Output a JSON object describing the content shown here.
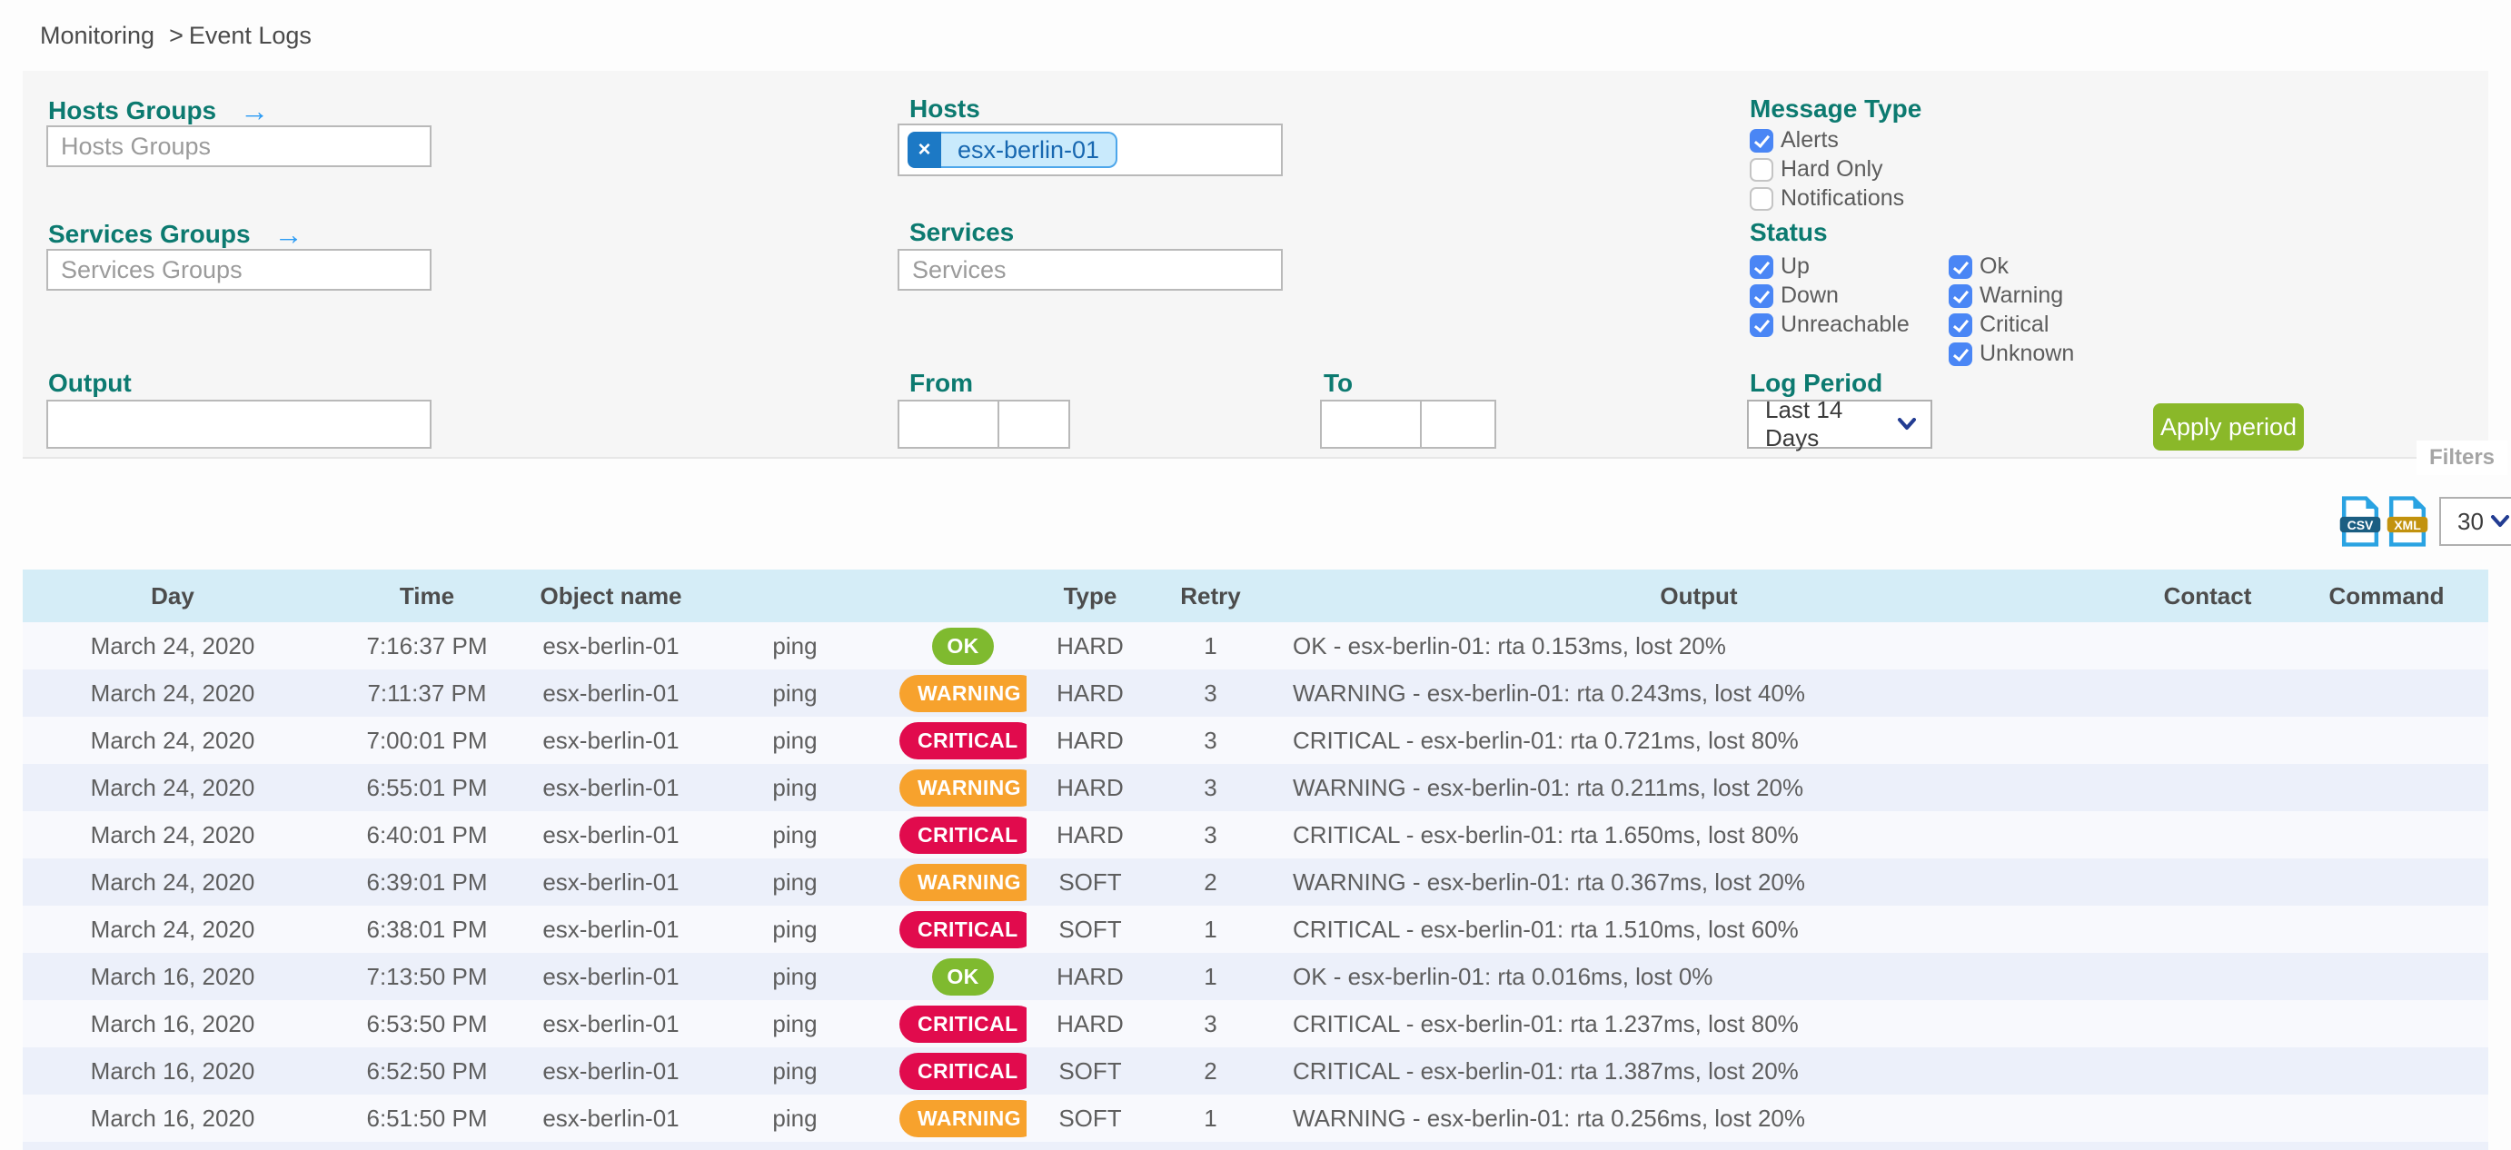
{
  "breadcrumb": {
    "section": "Monitoring",
    "separator": ">",
    "page": "Event Logs"
  },
  "filters": {
    "hosts_groups": {
      "label": "Hosts Groups",
      "placeholder": "Hosts Groups",
      "arrow_icon": "→"
    },
    "services_groups": {
      "label": "Services Groups",
      "placeholder": "Services Groups",
      "arrow_icon": "→"
    },
    "hosts": {
      "label": "Hosts",
      "selected": [
        {
          "label": "esx-berlin-01",
          "remove_icon": "×"
        }
      ]
    },
    "services": {
      "label": "Services",
      "placeholder": "Services"
    },
    "output": {
      "label": "Output",
      "value": ""
    },
    "from": {
      "label": "From",
      "date_value": "",
      "time_value": ""
    },
    "to": {
      "label": "To",
      "date_value": "",
      "time_value": ""
    },
    "message_type": {
      "label": "Message Type",
      "options": [
        {
          "label": "Alerts",
          "checked": true
        },
        {
          "label": "Hard Only",
          "checked": false
        },
        {
          "label": "Notifications",
          "checked": false
        }
      ]
    },
    "status": {
      "label": "Status",
      "host_statuses": [
        {
          "label": "Up",
          "checked": true
        },
        {
          "label": "Down",
          "checked": true
        },
        {
          "label": "Unreachable",
          "checked": true
        }
      ],
      "service_statuses": [
        {
          "label": "Ok",
          "checked": true
        },
        {
          "label": "Warning",
          "checked": true
        },
        {
          "label": "Critical",
          "checked": true
        },
        {
          "label": "Unknown",
          "checked": true
        }
      ]
    },
    "log_period": {
      "label": "Log Period",
      "selected": "Last 14 Days"
    },
    "apply_button_label": "Apply period",
    "filters_tab_label": "Filters"
  },
  "toolbar": {
    "csv_icon_label": "CSV",
    "xml_icon_label": "XML",
    "rows_per_page": "30"
  },
  "table": {
    "headers": {
      "day": "Day",
      "time": "Time",
      "object_name": "Object name",
      "service": "",
      "status": "",
      "type": "Type",
      "retry": "Retry",
      "output": "Output",
      "contact": "Contact",
      "command": "Command"
    },
    "rows": [
      {
        "day": "March 24, 2020",
        "time": "7:16:37 PM",
        "object_name": "esx-berlin-01",
        "service": "ping",
        "status": "OK",
        "type": "HARD",
        "retry": "1",
        "output": "OK - esx-berlin-01: rta 0.153ms, lost 20%",
        "contact": "",
        "command": ""
      },
      {
        "day": "March 24, 2020",
        "time": "7:11:37 PM",
        "object_name": "esx-berlin-01",
        "service": "ping",
        "status": "WARNING",
        "type": "HARD",
        "retry": "3",
        "output": "WARNING - esx-berlin-01: rta 0.243ms, lost 40%",
        "contact": "",
        "command": ""
      },
      {
        "day": "March 24, 2020",
        "time": "7:00:01 PM",
        "object_name": "esx-berlin-01",
        "service": "ping",
        "status": "CRITICAL",
        "type": "HARD",
        "retry": "3",
        "output": "CRITICAL - esx-berlin-01: rta 0.721ms, lost 80%",
        "contact": "",
        "command": ""
      },
      {
        "day": "March 24, 2020",
        "time": "6:55:01 PM",
        "object_name": "esx-berlin-01",
        "service": "ping",
        "status": "WARNING",
        "type": "HARD",
        "retry": "3",
        "output": "WARNING - esx-berlin-01: rta 0.211ms, lost 20%",
        "contact": "",
        "command": ""
      },
      {
        "day": "March 24, 2020",
        "time": "6:40:01 PM",
        "object_name": "esx-berlin-01",
        "service": "ping",
        "status": "CRITICAL",
        "type": "HARD",
        "retry": "3",
        "output": "CRITICAL - esx-berlin-01: rta 1.650ms, lost 80%",
        "contact": "",
        "command": ""
      },
      {
        "day": "March 24, 2020",
        "time": "6:39:01 PM",
        "object_name": "esx-berlin-01",
        "service": "ping",
        "status": "WARNING",
        "type": "SOFT",
        "retry": "2",
        "output": "WARNING - esx-berlin-01: rta 0.367ms, lost 20%",
        "contact": "",
        "command": ""
      },
      {
        "day": "March 24, 2020",
        "time": "6:38:01 PM",
        "object_name": "esx-berlin-01",
        "service": "ping",
        "status": "CRITICAL",
        "type": "SOFT",
        "retry": "1",
        "output": "CRITICAL - esx-berlin-01: rta 1.510ms, lost 60%",
        "contact": "",
        "command": ""
      },
      {
        "day": "March 16, 2020",
        "time": "7:13:50 PM",
        "object_name": "esx-berlin-01",
        "service": "ping",
        "status": "OK",
        "type": "HARD",
        "retry": "1",
        "output": "OK - esx-berlin-01: rta 0.016ms, lost 0%",
        "contact": "",
        "command": ""
      },
      {
        "day": "March 16, 2020",
        "time": "6:53:50 PM",
        "object_name": "esx-berlin-01",
        "service": "ping",
        "status": "CRITICAL",
        "type": "HARD",
        "retry": "3",
        "output": "CRITICAL - esx-berlin-01: rta 1.237ms, lost 80%",
        "contact": "",
        "command": ""
      },
      {
        "day": "March 16, 2020",
        "time": "6:52:50 PM",
        "object_name": "esx-berlin-01",
        "service": "ping",
        "status": "CRITICAL",
        "type": "SOFT",
        "retry": "2",
        "output": "CRITICAL - esx-berlin-01: rta 1.387ms, lost 20%",
        "contact": "",
        "command": ""
      },
      {
        "day": "March 16, 2020",
        "time": "6:51:50 PM",
        "object_name": "esx-berlin-01",
        "service": "ping",
        "status": "WARNING",
        "type": "SOFT",
        "retry": "1",
        "output": "WARNING - esx-berlin-01: rta 0.256ms, lost 20%",
        "contact": "",
        "command": ""
      }
    ]
  },
  "colors": {
    "accent_teal": "#0c7a70",
    "link_blue": "#2d9cf4",
    "checkbox_blue": "#4a86f5",
    "apply_green": "#8ab829",
    "status_ok": "#7fba2f",
    "status_warning": "#f7a22d",
    "status_critical": "#e10b4d",
    "table_header_bg": "#d5edf7",
    "row_alt_bg": "#ecf0fa",
    "chip_blue": "#1c79c5",
    "csv_badge": "#1b5e82",
    "xml_badge": "#c2920e"
  }
}
